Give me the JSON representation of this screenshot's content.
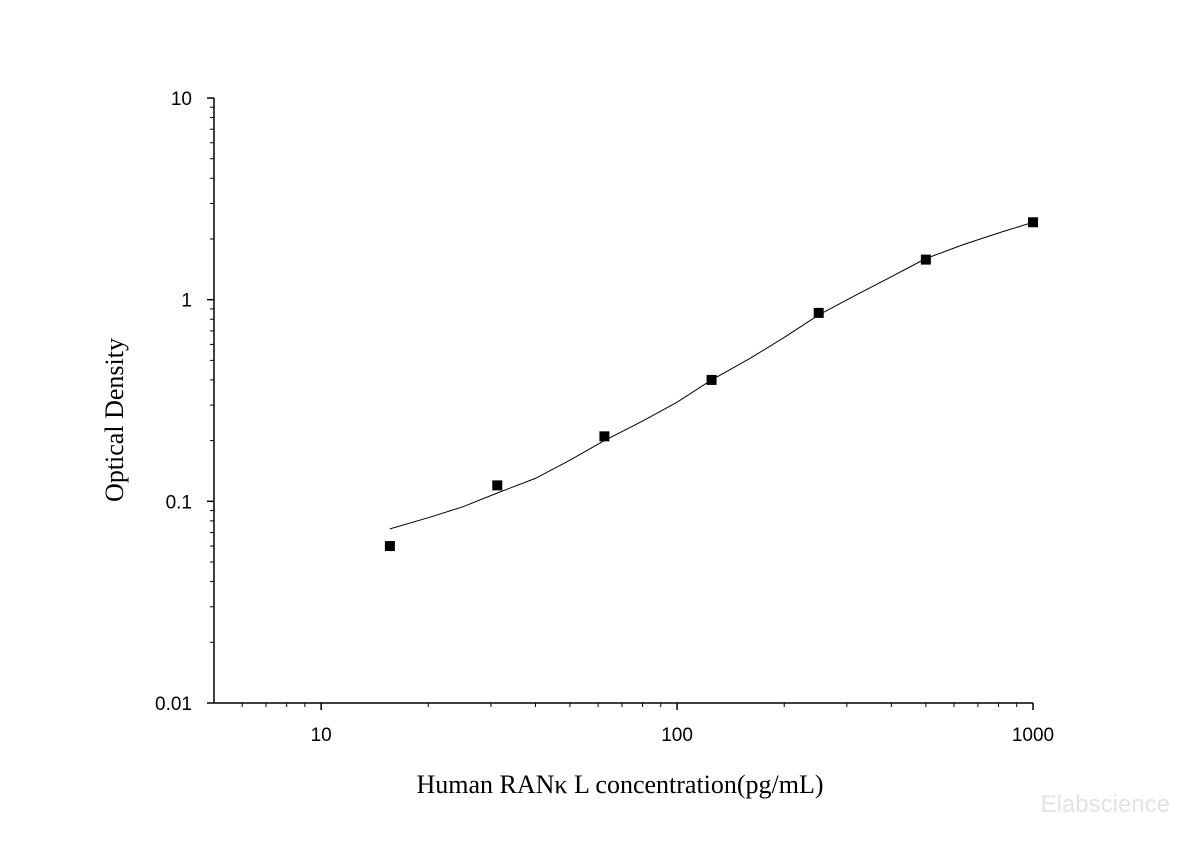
{
  "chart_data": {
    "type": "scatter",
    "xlabel": "Human RANκ L concentration(pg/mL)",
    "ylabel": "Optical Density",
    "xscale": "log",
    "yscale": "log",
    "xlim": [
      5,
      1000
    ],
    "ylim": [
      0.01,
      10
    ],
    "x_ticks": [
      10,
      100,
      1000
    ],
    "x_tick_labels": [
      "10",
      "100",
      "1000"
    ],
    "y_ticks": [
      0.01,
      0.1,
      1,
      10
    ],
    "y_tick_labels": [
      "0.01",
      "0.1",
      "1",
      "10"
    ],
    "grid": false,
    "series": [
      {
        "marker": "square",
        "color": "#000000",
        "x": [
          15.6,
          31.25,
          62.5,
          125,
          250,
          500,
          1000
        ],
        "y": [
          0.06,
          0.12,
          0.21,
          0.4,
          0.86,
          1.58,
          2.42
        ]
      }
    ],
    "fit_curve": {
      "color": "#000000",
      "x": [
        15.6,
        20,
        25,
        31.25,
        40,
        50,
        62.5,
        80,
        100,
        125,
        160,
        200,
        250,
        320,
        400,
        500,
        640,
        800,
        1000
      ],
      "y": [
        0.073,
        0.083,
        0.094,
        0.11,
        0.13,
        0.16,
        0.2,
        0.25,
        0.31,
        0.4,
        0.51,
        0.65,
        0.84,
        1.06,
        1.3,
        1.6,
        1.88,
        2.14,
        2.42
      ]
    }
  },
  "watermark": "Elabscience"
}
